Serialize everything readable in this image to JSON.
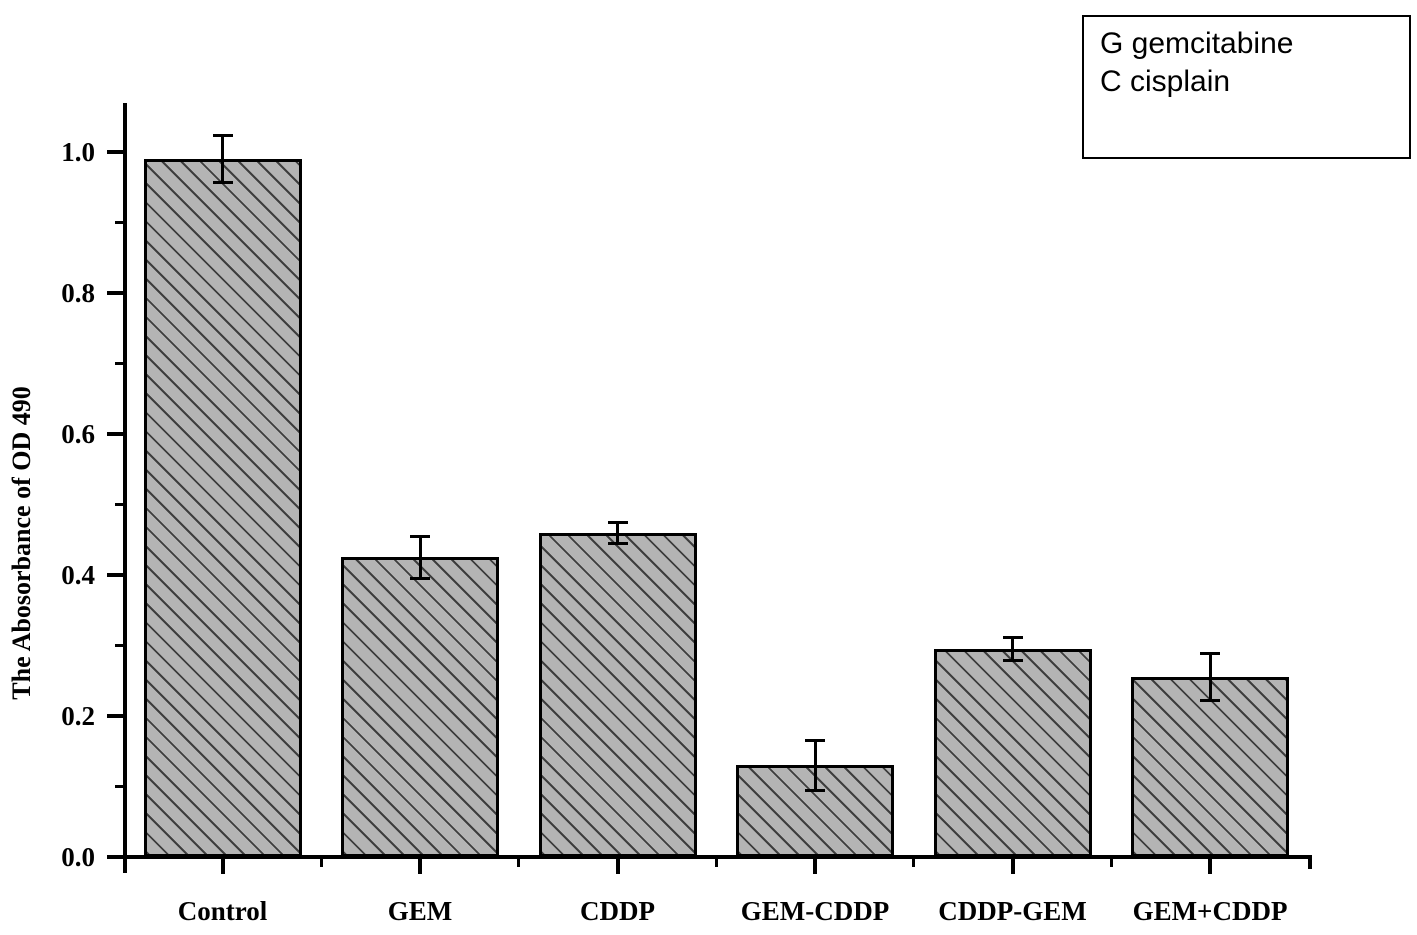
{
  "figure": {
    "background": "#ffffff"
  },
  "legend": {
    "entries": [
      "G gemcitabine",
      "C cisplain"
    ]
  },
  "chart_data": {
    "type": "bar",
    "title": "",
    "xlabel": "",
    "ylabel": "The Abosorbance of OD 490",
    "categories": [
      "Control",
      "GEM",
      "CDDP",
      "GEM-CDDP",
      "CDDP-GEM",
      "GEM+CDDP"
    ],
    "values": [
      0.99,
      0.425,
      0.46,
      0.13,
      0.295,
      0.255
    ],
    "errors": [
      0.033,
      0.03,
      0.015,
      0.035,
      0.016,
      0.033
    ],
    "ylim": [
      0,
      1.07
    ],
    "ytick_values": [
      0.0,
      0.2,
      0.4,
      0.6,
      0.8,
      1.0
    ],
    "ytick_labels": [
      "0.0",
      "0.2",
      "0.4",
      "0.6",
      "0.8",
      "1.0"
    ],
    "yminor_values": [
      0.1,
      0.3,
      0.5,
      0.7,
      0.9
    ],
    "grid": false,
    "legend_position": "top-right",
    "bar_style": {
      "fill": "#b4b4b4",
      "hatch": "diagonal-down",
      "hatch_color": "#3d3d3d",
      "border_color": "#000000",
      "error_bar_color": "#000000"
    }
  }
}
